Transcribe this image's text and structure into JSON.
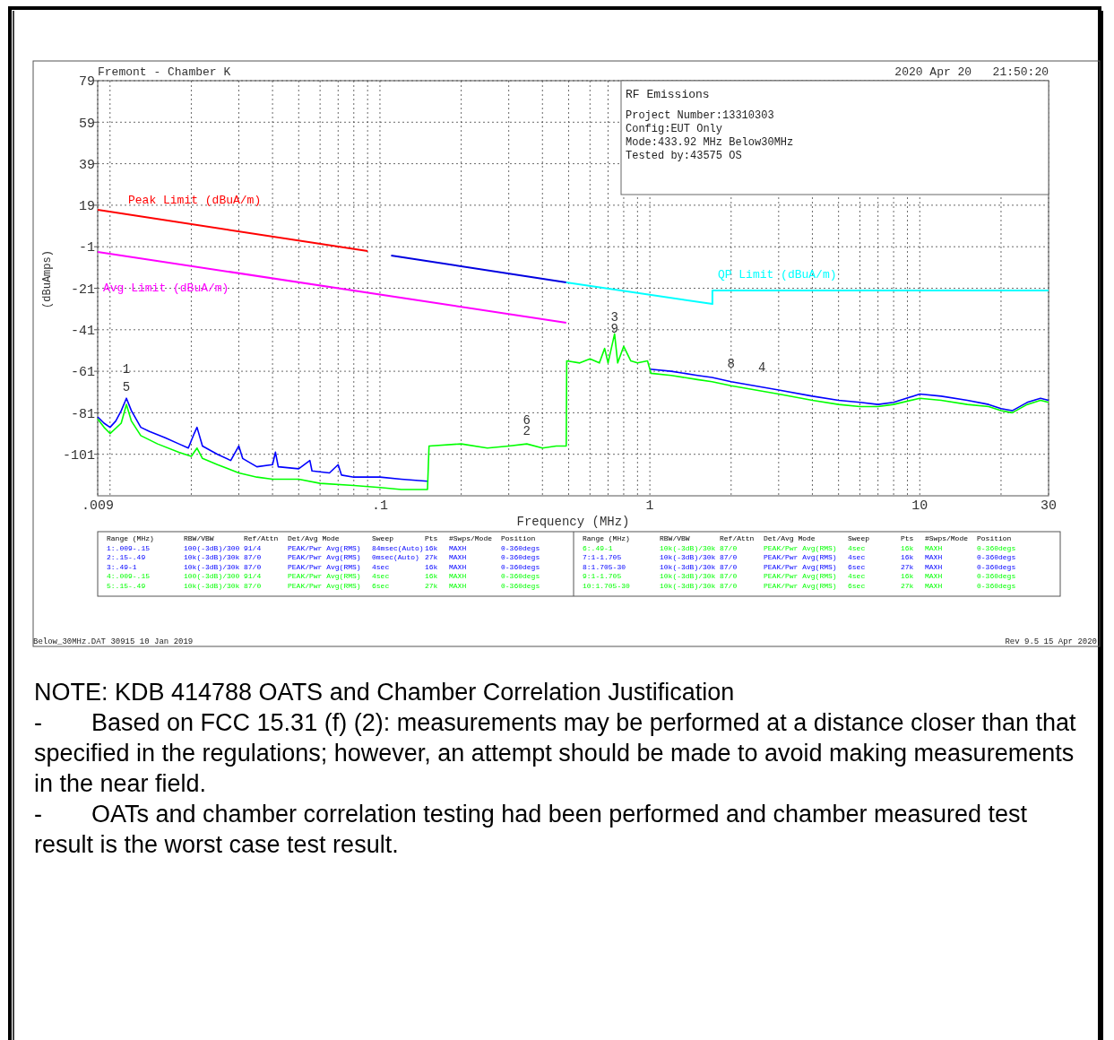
{
  "chart_data": {
    "type": "line",
    "title": "Fremont - Chamber K",
    "xlabel": "Frequency (MHz)",
    "ylabel": "(dBuAmps)",
    "log": "x",
    "grid": true,
    "xlim": [
      0.009,
      30
    ],
    "ylim": [
      -121,
      79
    ],
    "xticks": [
      {
        "value": 0.009,
        "label": ".009"
      },
      {
        "value": 0.01,
        "label": null
      },
      {
        "value": 0.02,
        "label": null
      },
      {
        "value": 0.03,
        "label": null
      },
      {
        "value": 0.04,
        "label": null
      },
      {
        "value": 0.05,
        "label": null
      },
      {
        "value": 0.06,
        "label": null
      },
      {
        "value": 0.07,
        "label": null
      },
      {
        "value": 0.08,
        "label": null
      },
      {
        "value": 0.09,
        "label": null
      },
      {
        "value": 0.1,
        "label": ".1"
      },
      {
        "value": 0.2,
        "label": null
      },
      {
        "value": 0.3,
        "label": null
      },
      {
        "value": 0.4,
        "label": null
      },
      {
        "value": 0.5,
        "label": null
      },
      {
        "value": 0.6,
        "label": null
      },
      {
        "value": 0.7,
        "label": null
      },
      {
        "value": 0.8,
        "label": null
      },
      {
        "value": 0.9,
        "label": null
      },
      1,
      {
        "value": 2,
        "label": null
      },
      {
        "value": 3,
        "label": null
      },
      {
        "value": 4,
        "label": null
      },
      {
        "value": 5,
        "label": null
      },
      {
        "value": 6,
        "label": null
      },
      {
        "value": 7,
        "label": null
      },
      {
        "value": 8,
        "label": null
      },
      {
        "value": 9,
        "label": null
      },
      10,
      {
        "value": 20,
        "label": null
      },
      30
    ],
    "yticks": [
      79,
      59,
      39,
      19,
      -1,
      -21,
      -41,
      -61,
      -81,
      -101
    ],
    "series": [
      {
        "color": "#0000ff",
        "x": [
          0.009,
          0.0095,
          0.01,
          0.0105,
          0.011,
          0.0115,
          0.012,
          0.013,
          0.014,
          0.016,
          0.018,
          0.0195,
          0.0205,
          0.021,
          0.022,
          0.025,
          0.028,
          0.03,
          0.031,
          0.035,
          0.04,
          0.041,
          0.042,
          0.05,
          0.055,
          0.056,
          0.065,
          0.07,
          0.072,
          0.08,
          0.1,
          0.12,
          0.15,
          0.16,
          1.0,
          1.2,
          1.5,
          1.7,
          2,
          3,
          4,
          5,
          6,
          7,
          8,
          10,
          12,
          15,
          18,
          20,
          22,
          25,
          28,
          30
        ],
        "values": [
          -83,
          -86,
          -88,
          -85,
          -80,
          -74,
          -80,
          -88,
          -90,
          -93,
          -96,
          -98,
          -91,
          -88,
          -97,
          -101,
          -104,
          -97,
          -103,
          -107,
          -106,
          -100,
          -107,
          -108,
          -104,
          -109,
          -110,
          -106,
          -111,
          -112,
          -112,
          -113,
          -114,
          null,
          -60,
          -61,
          -63,
          -64,
          -66,
          -70,
          -73,
          -75,
          -76,
          -77,
          -76,
          -72,
          -73,
          -75,
          -77,
          -79,
          -80,
          -76,
          -74,
          -75
        ]
      },
      {
        "color": "#00ff00",
        "x": [
          0.009,
          0.0095,
          0.01,
          0.011,
          0.0115,
          0.012,
          0.013,
          0.015,
          0.018,
          0.02,
          0.021,
          0.022,
          0.025,
          0.03,
          0.035,
          0.04,
          0.05,
          0.06,
          0.08,
          0.1,
          0.12,
          0.15,
          0.152,
          0.2,
          0.25,
          0.3,
          0.35,
          0.4,
          0.45,
          0.49,
          0.492,
          0.55,
          0.6,
          0.65,
          0.68,
          0.7,
          0.74,
          0.76,
          0.8,
          0.85,
          0.9,
          0.98,
          1.01,
          1.2,
          1.5,
          1.7,
          2,
          3,
          4,
          5,
          6,
          7,
          8,
          10,
          12,
          15,
          18,
          20,
          22,
          25,
          28,
          30
        ],
        "values": [
          -84,
          -88,
          -91,
          -86,
          -77,
          -85,
          -92,
          -96,
          -100,
          -102,
          -98,
          -103,
          -106,
          -110,
          -112,
          -113,
          -113,
          -115,
          -116,
          -117,
          -118,
          -118,
          -97,
          -96,
          -98,
          -97,
          -96,
          -98,
          -97,
          -97,
          -56,
          -57,
          -55,
          -57,
          -50,
          -57,
          -43,
          -57,
          -49,
          -56,
          -57,
          -56,
          -62,
          -63,
          -65,
          -66,
          -68,
          -72,
          -75,
          -77,
          -78,
          -78,
          -77,
          -74,
          -75,
          -77,
          -78,
          -80,
          -81,
          -77,
          -75,
          -76
        ]
      },
      {
        "name": "Peak Limit (dBuA/m)",
        "color": "#ff0000",
        "x": [
          0.009,
          0.09
        ],
        "values": [
          16.8,
          -3.1
        ]
      },
      {
        "name": "Avg Limit (dBuA/m)",
        "color": "#ff00ff",
        "x": [
          0.009,
          0.49
        ],
        "values": [
          -3.5,
          -37.6
        ]
      },
      {
        "color": "#0000e0",
        "x": [
          0.11,
          0.49
        ],
        "values": [
          -5.2,
          -18.2
        ]
      },
      {
        "name": "QP Limit (dBuA/m)",
        "color": "#00ffff",
        "x": [
          0.49,
          1.705,
          1.705,
          30
        ],
        "values": [
          -18.2,
          -28.6,
          -22.1,
          -22.1
        ]
      }
    ],
    "annotations": [
      "2020 Apr 20   21:50:20",
      "RF Emissions",
      "Project Number:13310303",
      "Config:EUT Only",
      "Mode:433.92 MHz Below30MHz",
      "Tested by:43575 OS",
      "Range (MHz)  RBW/VBW  Ref/Attn  Det/Avg Mode  Sweep  Pts  #Swps/Mode  Position",
      "1:.009-.15  100(-3dB)/300  91/4  PEAK/Pwr Avg(RMS)  84msec(Auto)  16k  MAXH  0-360degs",
      "2:.15-.49  10k(-3dB)/30k  87/0  PEAK/Pwr Avg(RMS)  0msec(Auto)  27k  MAXH  0-360degs",
      "3:.49-1  10k(-3dB)/30k  87/0  PEAK/Pwr Avg(RMS)  4sec  16k  MAXH  0-360degs",
      "4:.009-.15  100(-3dB)/300  91/4  PEAK/Pwr Avg(RMS)  4sec  16k  MAXH  0-360degs",
      "5:.15-.49  10k(-3dB)/30k  87/0  PEAK/Pwr Avg(RMS)  6sec  27k  MAXH  0-360degs",
      "Range (MHz)  RBW/VBW  Ref/Attn  Det/Avg Mode  Sweep  Pts  #Swps/Mode  Position",
      "6:.49-1  10k(-3dB)/30k  87/0  PEAK/Pwr Avg(RMS)  4sec  16k  MAXH  0-360degs",
      "7:1-1.705  10k(-3dB)/30k  87/0  PEAK/Pwr Avg(RMS)  4sec  16k  MAXH  0-360degs",
      "8:1.705-30  10k(-3dB)/30k  87/0  PEAK/Pwr Avg(RMS)  6sec  27k  MAXH  0-360degs",
      "9:1-1.705  10k(-3dB)/30k  87/0  PEAK/Pwr Avg(RMS)  4sec  16k  MAXH  0-360degs",
      "10:1.705-30  10k(-3dB)/30k  87/0  PEAK/Pwr Avg(RMS)  6sec  27k  MAXH  0-360degs",
      "Below_30MHz.DAT 30915 10 Jan 2019",
      "Rev 9.5 15 Apr 2020",
      "NOTE: KDB 414788 OATS and Chamber Correlation Justification",
      "-\tBased on FCC 15.31 (f) (2): measurements may be performed at a distance closer than that specified in the regulations; however, an attempt should be made to avoid making measurements in the near field.",
      "-\tOATs and chamber correlation testing had been performed and chamber measured test result is the worst case test result.",
      {
        "text": "1",
        "x": 0.0115,
        "y": -74
      },
      {
        "text": "5",
        "x": 0.0115,
        "y": -77
      },
      {
        "text": "6",
        "x": 0.35,
        "y": -96
      },
      {
        "text": "2",
        "x": 0.35,
        "y": -96
      },
      {
        "text": "3",
        "x": 0.74,
        "y": -43
      },
      {
        "text": "9",
        "x": 0.74,
        "y": -43
      },
      {
        "text": "8",
        "x": 2,
        "y": -66
      },
      {
        "text": "4",
        "x": 2.6,
        "y": -68
      }
    ]
  }
}
